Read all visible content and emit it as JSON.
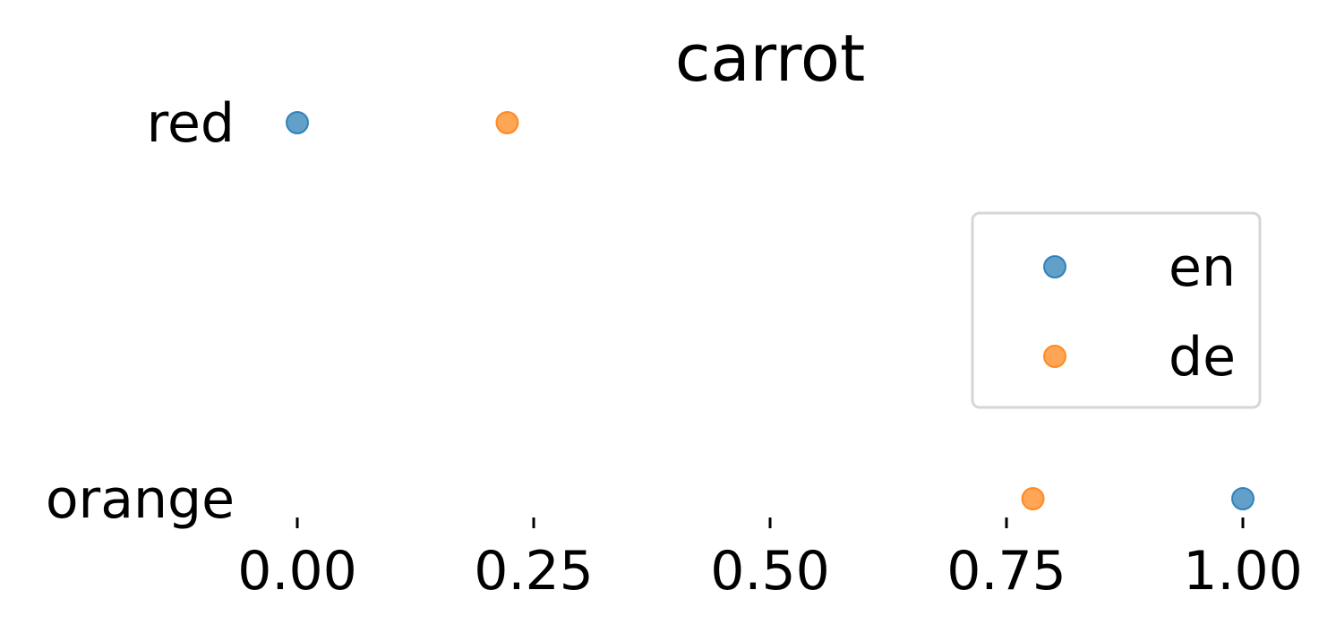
{
  "chart_data": {
    "type": "scatter",
    "title": "carrot",
    "xlabel": "",
    "ylabel": "",
    "categories": [
      "red",
      "orange"
    ],
    "xlim": [
      0,
      1
    ],
    "x_ticks": [
      0.0,
      0.25,
      0.5,
      0.75,
      1.0
    ],
    "x_tick_labels": [
      "0.00",
      "0.25",
      "0.50",
      "0.75",
      "1.00"
    ],
    "grid": false,
    "legend_position": "right",
    "series": [
      {
        "name": "en",
        "color": "#1f77b4",
        "points": [
          {
            "category": "red",
            "x": 0.0
          },
          {
            "category": "orange",
            "x": 1.0
          }
        ]
      },
      {
        "name": "de",
        "color": "#ff7f0e",
        "points": [
          {
            "category": "red",
            "x": 0.222
          },
          {
            "category": "orange",
            "x": 0.778
          }
        ]
      }
    ]
  }
}
